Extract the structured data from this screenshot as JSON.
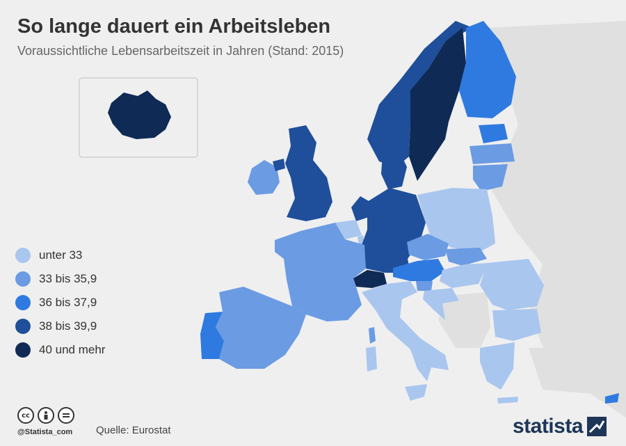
{
  "header": {
    "title": "So lange dauert ein Arbeitsleben",
    "subtitle": "Voraussichtliche Lebensarbeitszeit in Jahren (Stand: 2015)"
  },
  "legend": {
    "items": [
      {
        "label": "unter 33",
        "color": "#a9c6ef"
      },
      {
        "label": "33 bis 35,9",
        "color": "#6b9be3"
      },
      {
        "label": "36 bis 37,9",
        "color": "#2f7ae0"
      },
      {
        "label": "38 bis 39,9",
        "color": "#1f4f9a"
      },
      {
        "label": "40 und mehr",
        "color": "#0f2a55"
      }
    ]
  },
  "map": {
    "background_color": "#efefef",
    "non_data_color": "#e0e0e0",
    "regions": [
      {
        "name": "Island",
        "category": "40 und mehr"
      },
      {
        "name": "Irland",
        "category": "33 bis 35,9"
      },
      {
        "name": "Vereinigtes Königreich",
        "category": "38 bis 39,9"
      },
      {
        "name": "Norwegen",
        "category": "38 bis 39,9"
      },
      {
        "name": "Schweden",
        "category": "40 und mehr"
      },
      {
        "name": "Finnland",
        "category": "36 bis 37,9"
      },
      {
        "name": "Estland",
        "category": "36 bis 37,9"
      },
      {
        "name": "Lettland",
        "category": "33 bis 35,9"
      },
      {
        "name": "Litauen",
        "category": "33 bis 35,9"
      },
      {
        "name": "Dänemark",
        "category": "38 bis 39,9"
      },
      {
        "name": "Niederlande",
        "category": "38 bis 39,9"
      },
      {
        "name": "Belgien",
        "category": "unter 33"
      },
      {
        "name": "Luxemburg",
        "category": "unter 33"
      },
      {
        "name": "Deutschland",
        "category": "38 bis 39,9"
      },
      {
        "name": "Polen",
        "category": "unter 33"
      },
      {
        "name": "Tschechien",
        "category": "33 bis 35,9"
      },
      {
        "name": "Slowakei",
        "category": "33 bis 35,9"
      },
      {
        "name": "Österreich",
        "category": "36 bis 37,9"
      },
      {
        "name": "Schweiz",
        "category": "40 und mehr"
      },
      {
        "name": "Frankreich",
        "category": "33 bis 35,9"
      },
      {
        "name": "Spanien",
        "category": "33 bis 35,9"
      },
      {
        "name": "Portugal",
        "category": "36 bis 37,9"
      },
      {
        "name": "Italien",
        "category": "unter 33"
      },
      {
        "name": "Slowenien",
        "category": "33 bis 35,9"
      },
      {
        "name": "Kroatien",
        "category": "unter 33"
      },
      {
        "name": "Ungarn",
        "category": "unter 33"
      },
      {
        "name": "Rumänien",
        "category": "unter 33"
      },
      {
        "name": "Bulgarien",
        "category": "unter 33"
      },
      {
        "name": "Griechenland",
        "category": "unter 33"
      },
      {
        "name": "Zypern",
        "category": "36 bis 37,9"
      }
    ]
  },
  "footer": {
    "cc_icons": [
      "cc",
      "by",
      "nd"
    ],
    "handle": "@Statista_com",
    "source": "Quelle: Eurostat",
    "brand": "statista"
  }
}
